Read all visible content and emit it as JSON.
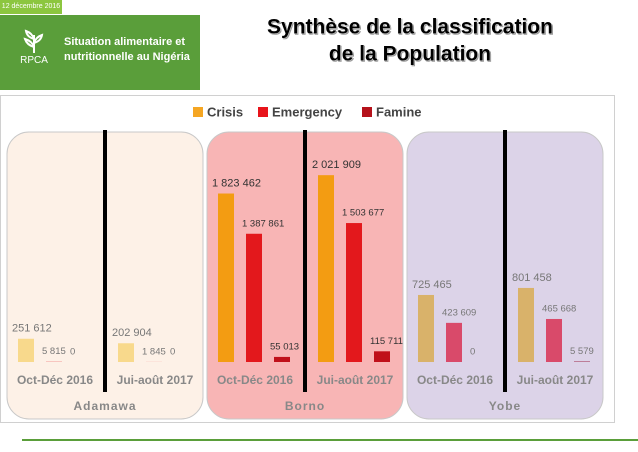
{
  "header": {
    "date": "12 décembre 2016",
    "logo": "RPCA",
    "subtitle": "Situation alimentaire et nutritionnelle au Nigéria"
  },
  "chart_data": {
    "type": "bar",
    "title_lines": [
      "Synthèse de la classification",
      "de la  Population"
    ],
    "groups": [
      "Adamawa",
      "Borno",
      "Yobe"
    ],
    "group_colors": [
      "#fdf1e7",
      "#f8b5b5",
      "#dcd3e8"
    ],
    "categories": [
      "Oct-Déc 2016",
      "Jui-août 2017",
      "Oct-Déc 2016",
      "Jui-août 2017",
      "Oct-Déc 2016",
      "Jui-août 2017"
    ],
    "ylim": [
      0,
      2500000
    ],
    "legend": "top",
    "series": [
      {
        "name": "Crisis",
        "color": "#f5a623",
        "colors": [
          "#f8d98c",
          "#f8d98c",
          "#f39c12",
          "#f39c12",
          "#d9b26a",
          "#d9b26a"
        ],
        "values": [
          251612,
          202904,
          1823462,
          2021909,
          725465,
          801458
        ],
        "value_labels": [
          "251 612",
          "202 904",
          "1 823 462",
          "2 021 909",
          "725 465",
          "801 458"
        ]
      },
      {
        "name": "Emergency",
        "color": "#e8141b",
        "colors": [
          "#f4a0a0",
          "#f4a0a0",
          "#e3181c",
          "#e3181c",
          "#d94a6a",
          "#d94a6a"
        ],
        "values": [
          5815,
          1845,
          1387861,
          1503677,
          423609,
          465668
        ],
        "value_labels": [
          "5 815",
          "1 845",
          "1 387 861",
          "1 503 677",
          "423 609",
          "465 668"
        ]
      },
      {
        "name": "Famine",
        "color": "#b5121b",
        "colors": [
          "#b5121b",
          "#b5121b",
          "#c0101a",
          "#c0101a",
          "#a03050",
          "#a03050"
        ],
        "values": [
          0,
          0,
          55013,
          115711,
          0,
          5579
        ],
        "value_labels": [
          "0",
          "0",
          "55 013",
          "115 711",
          "0",
          "5 579"
        ]
      }
    ]
  }
}
